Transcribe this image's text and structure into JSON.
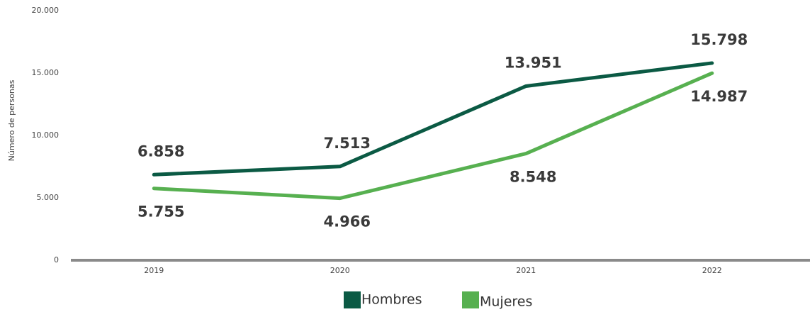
{
  "chart_data": {
    "type": "line",
    "y_axis_label": "Número de personas",
    "categories": [
      "2019",
      "2020",
      "2021",
      "2022"
    ],
    "series": [
      {
        "name": "Hombres",
        "color": "#0b5a44",
        "values": [
          6858,
          7513,
          13951,
          15798
        ],
        "value_labels": [
          "6.858",
          "7.513",
          "13.951",
          "15.798"
        ]
      },
      {
        "name": "Mujeres",
        "color": "#57b050",
        "values": [
          5755,
          4966,
          8548,
          14987
        ],
        "value_labels": [
          "5.755",
          "4.966",
          "8.548",
          "14.987"
        ]
      }
    ],
    "ylim": [
      0,
      20000
    ],
    "yticks": [
      0,
      {
        "value": 5000,
        "label": "5.000"
      },
      {
        "value": 10000,
        "label": "10.000"
      },
      {
        "value": 15000,
        "label": "15.000"
      },
      {
        "value": 20000,
        "label": "20.000"
      }
    ],
    "grid": false
  }
}
